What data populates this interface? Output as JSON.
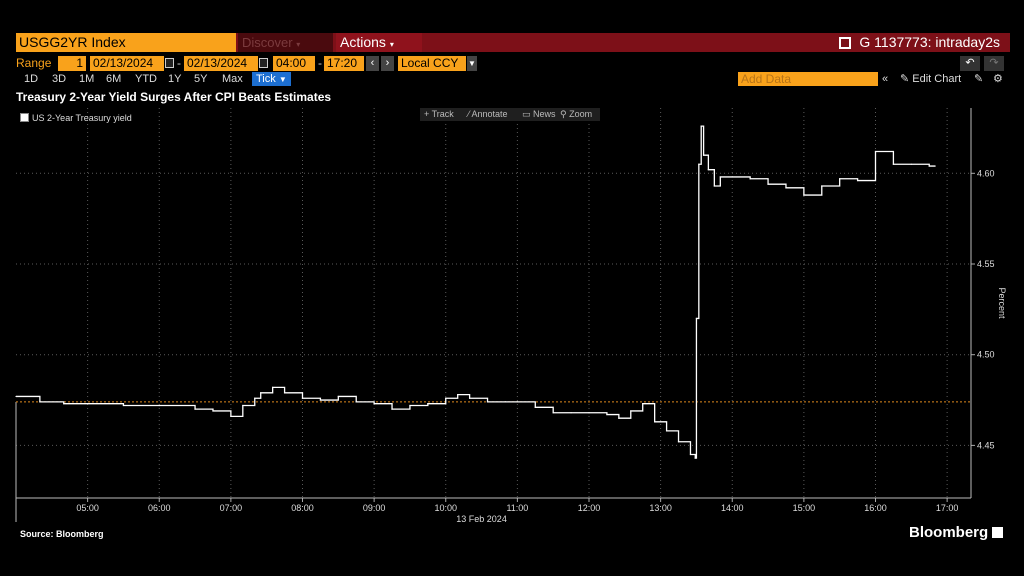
{
  "toolbar": {
    "ticker": "USGG2YR Index",
    "discover_label": "Discover",
    "actions_label": "Actions",
    "intraday_label": "G 1137773: intraday2s",
    "range_label": "Range",
    "range_value": "1",
    "start_date": "02/13/2024",
    "end_date": "02/13/2024",
    "start_time": "04:00",
    "end_time": "17:20",
    "currency": "Local CCY",
    "periods": [
      "1D",
      "3D",
      "1M",
      "6M",
      "YTD",
      "1Y",
      "5Y",
      "Max"
    ],
    "selected_period": "Tick",
    "add_data_placeholder": "Add Data",
    "edit_chart_label": "Edit Chart",
    "chart_tools": [
      "Track",
      "Annotate",
      "News",
      "Zoom"
    ]
  },
  "source": "Source: Bloomberg",
  "brand": "Bloomberg",
  "colors": {
    "background": "#000000",
    "accent_orange": "#f9a21b",
    "header_red": "#7d1018",
    "line": "#ffffff",
    "reference_line": "#e08a1e",
    "selected_tab": "#1d6fd1"
  },
  "chart_data": {
    "type": "line",
    "title": "Treasury 2-Year Yield Surges After CPI Beats Estimates",
    "xlabel": "13 Feb 2024",
    "ylabel": "Percent",
    "x_ticks": [
      "05:00",
      "06:00",
      "07:00",
      "08:00",
      "09:00",
      "10:00",
      "11:00",
      "12:00",
      "13:00",
      "14:00",
      "15:00",
      "16:00",
      "17:00"
    ],
    "y_ticks": [
      "4.45",
      "4.50",
      "4.55",
      "4.60"
    ],
    "xlim": [
      "04:00",
      "17:20"
    ],
    "ylim": [
      4.421,
      4.636
    ],
    "grid": true,
    "reference_line": 4.474,
    "series": [
      {
        "name": "US 2-Year Treasury yield",
        "x": [
          "04:00",
          "04:20",
          "04:40",
          "05:00",
          "05:30",
          "06:00",
          "06:30",
          "06:45",
          "07:00",
          "07:10",
          "07:20",
          "07:25",
          "07:35",
          "07:45",
          "08:00",
          "08:15",
          "08:30",
          "08:45",
          "09:00",
          "09:15",
          "09:30",
          "09:45",
          "10:00",
          "10:10",
          "10:20",
          "10:35",
          "10:50",
          "11:00",
          "11:15",
          "11:30",
          "11:45",
          "12:00",
          "12:15",
          "12:25",
          "12:35",
          "12:45",
          "12:55",
          "13:05",
          "13:15",
          "13:25",
          "13:29",
          "13:30",
          "13:32",
          "13:34",
          "13:36",
          "13:40",
          "13:45",
          "13:50",
          "14:00",
          "14:15",
          "14:30",
          "14:45",
          "15:00",
          "15:15",
          "15:30",
          "15:45",
          "16:00",
          "16:15",
          "16:30",
          "16:45",
          "16:50"
        ],
        "values": [
          4.477,
          4.474,
          4.473,
          4.473,
          4.472,
          4.472,
          4.47,
          4.469,
          4.466,
          4.472,
          4.476,
          4.479,
          4.482,
          4.479,
          4.476,
          4.475,
          4.477,
          4.474,
          4.473,
          4.47,
          4.472,
          4.473,
          4.476,
          4.478,
          4.476,
          4.474,
          4.474,
          4.474,
          4.471,
          4.468,
          4.468,
          4.468,
          4.467,
          4.465,
          4.469,
          4.473,
          4.463,
          4.458,
          4.452,
          4.445,
          4.443,
          4.52,
          4.605,
          4.626,
          4.61,
          4.602,
          4.593,
          4.598,
          4.598,
          4.597,
          4.594,
          4.592,
          4.588,
          4.593,
          4.597,
          4.596,
          4.612,
          4.605,
          4.605,
          4.604,
          4.604
        ]
      }
    ]
  }
}
